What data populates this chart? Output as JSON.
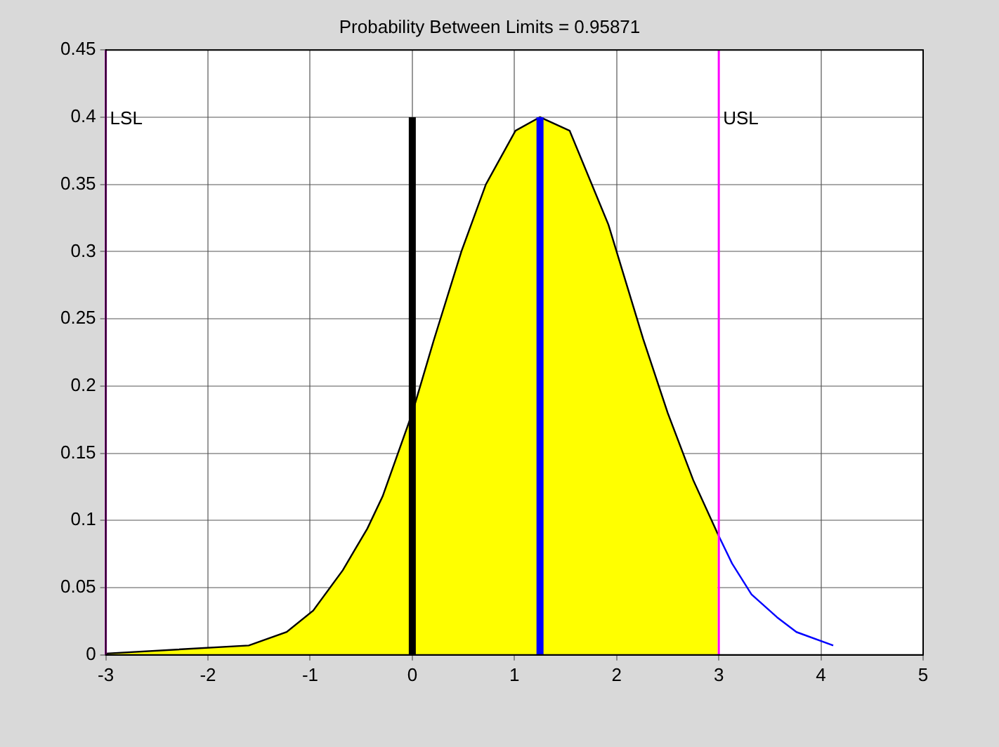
{
  "chart_data": {
    "type": "area",
    "title": "Probability Between Limits = 0.95871",
    "series": [
      {
        "type": "area",
        "color": "#ffff00",
        "x": [
          -3,
          -1.6,
          -1.23,
          -0.97,
          -0.68,
          -0.44,
          -0.29,
          0,
          0.21,
          0.48,
          0.72,
          1.01,
          1.25,
          1.54,
          1.92,
          2.26,
          2.5,
          2.75,
          2.99
        ],
        "values": [
          0.001,
          0.007,
          0.017,
          0.033,
          0.063,
          0.094,
          0.118,
          0.18,
          0.234,
          0.3,
          0.35,
          0.39,
          0.4,
          0.39,
          0.32,
          0.235,
          0.18,
          0.13,
          0.09
        ]
      },
      {
        "type": "line",
        "color": "#0000ff",
        "x": [
          2.99,
          3.13,
          3.32,
          3.57,
          3.76,
          4.12
        ],
        "values": [
          0.09,
          0.068,
          0.045,
          0.028,
          0.017,
          0.007
        ]
      },
      {
        "type": "line",
        "color": "#000000",
        "x": [
          0,
          0
        ],
        "values": [
          0,
          0.4
        ]
      },
      {
        "type": "line",
        "color": "#0000ff",
        "x": [
          1.25,
          1.25
        ],
        "values": [
          0,
          0.4
        ]
      }
    ],
    "ref_lines": [
      {
        "axis": "x",
        "value": -3,
        "label": "LSL",
        "color": "#ff00ff"
      },
      {
        "axis": "x",
        "value": 3,
        "label": "USL",
        "color": "#ff00ff"
      }
    ],
    "xlim": [
      -3,
      5
    ],
    "xticks": [
      -3,
      -2,
      -1,
      0,
      1,
      2,
      3,
      4,
      5
    ],
    "ylim": [
      0,
      0.45
    ],
    "yticks": [
      0,
      0.05,
      0.1,
      0.15,
      0.2,
      0.25,
      0.3,
      0.35,
      0.4,
      0.45
    ],
    "grid": true,
    "legend": false
  }
}
